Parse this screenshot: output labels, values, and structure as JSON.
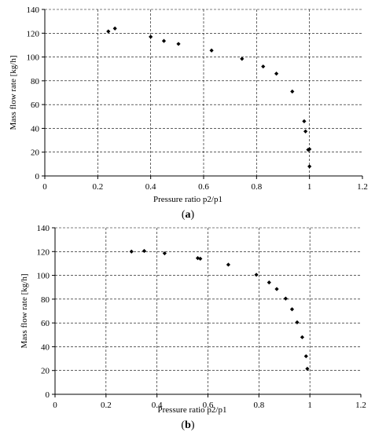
{
  "chart_data": [
    {
      "type": "scatter",
      "caption": "(a)",
      "caption_letter": "a",
      "xlabel": "Pressure ratio p2/p1",
      "ylabel": "Mass flow rate [kg/h]",
      "xlim": [
        0,
        1.2
      ],
      "ylim": [
        0,
        140
      ],
      "xticks": [
        "0",
        "0.2",
        "0.4",
        "0.6",
        "0.8",
        "1",
        "1.2"
      ],
      "yticks": [
        "0",
        "20",
        "40",
        "60",
        "80",
        "100",
        "120",
        "140"
      ],
      "grid": "dashed",
      "marker_color": "#000000",
      "points": [
        {
          "x": 0.24,
          "y": 121.5
        },
        {
          "x": 0.265,
          "y": 124.0
        },
        {
          "x": 0.4,
          "y": 117.0
        },
        {
          "x": 0.45,
          "y": 113.5
        },
        {
          "x": 0.505,
          "y": 111.0
        },
        {
          "x": 0.63,
          "y": 105.5
        },
        {
          "x": 0.745,
          "y": 98.5
        },
        {
          "x": 0.825,
          "y": 92.0
        },
        {
          "x": 0.875,
          "y": 86.0
        },
        {
          "x": 0.935,
          "y": 71.0
        },
        {
          "x": 0.98,
          "y": 46.0
        },
        {
          "x": 0.985,
          "y": 37.5
        },
        {
          "x": 0.995,
          "y": 22.0
        },
        {
          "x": 1.0,
          "y": 22.5
        },
        {
          "x": 1.0,
          "y": 8.0
        }
      ]
    },
    {
      "type": "scatter",
      "caption": "(b)",
      "caption_letter": "b",
      "xlabel": "Pressure ratio p2/p1",
      "ylabel": "Mass flow rate [kg/h]",
      "xlim": [
        0,
        1.2
      ],
      "ylim": [
        0,
        140
      ],
      "xticks": [
        "0",
        "0.2",
        "0.4",
        "0.6",
        "0.8",
        "1",
        "1.2"
      ],
      "yticks": [
        "0",
        "20",
        "40",
        "60",
        "80",
        "100",
        "120",
        "140"
      ],
      "grid": "dashed",
      "marker_color": "#000000",
      "points": [
        {
          "x": 0.3,
          "y": 120.0
        },
        {
          "x": 0.35,
          "y": 120.5
        },
        {
          "x": 0.43,
          "y": 118.5
        },
        {
          "x": 0.56,
          "y": 114.5
        },
        {
          "x": 0.57,
          "y": 114.0
        },
        {
          "x": 0.68,
          "y": 109.0
        },
        {
          "x": 0.79,
          "y": 100.5
        },
        {
          "x": 0.84,
          "y": 94.0
        },
        {
          "x": 0.87,
          "y": 88.5
        },
        {
          "x": 0.905,
          "y": 80.5
        },
        {
          "x": 0.93,
          "y": 71.5
        },
        {
          "x": 0.95,
          "y": 60.5
        },
        {
          "x": 0.97,
          "y": 48.0
        },
        {
          "x": 0.985,
          "y": 32.0
        },
        {
          "x": 0.99,
          "y": 21.5
        }
      ]
    }
  ]
}
